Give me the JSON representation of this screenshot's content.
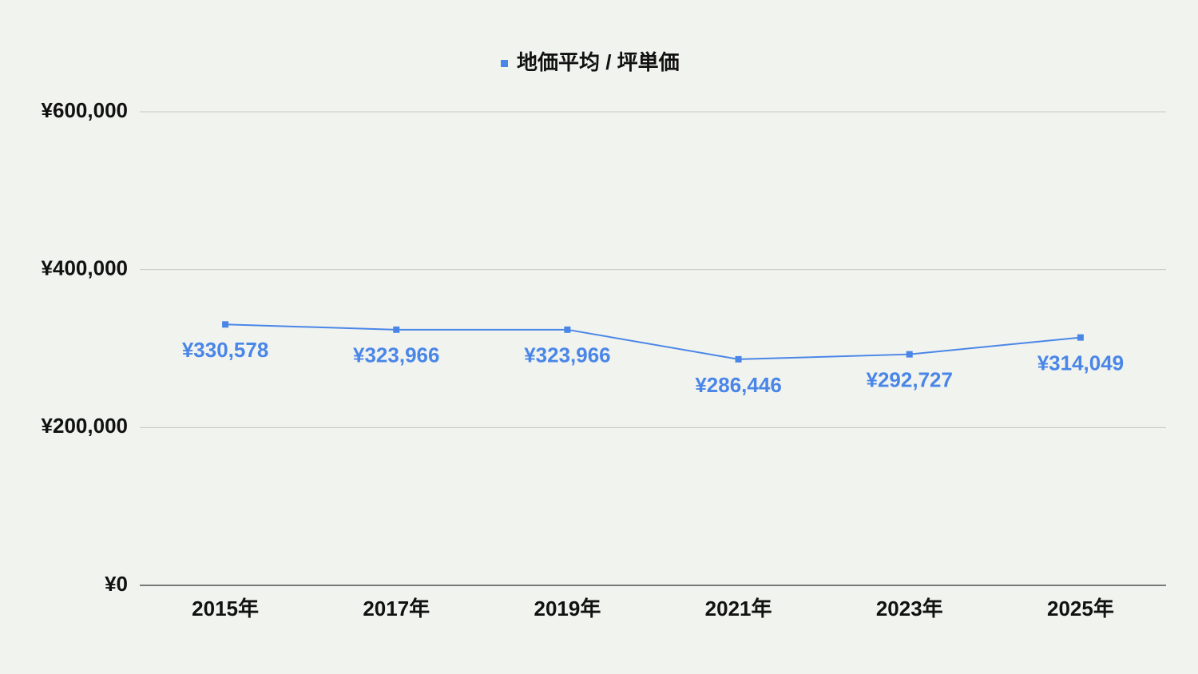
{
  "chart_data": {
    "type": "line",
    "series": [
      {
        "name": "地価平均 / 坪単価",
        "color": "#4a86e8",
        "values": [
          330578,
          323966,
          323966,
          286446,
          292727,
          314049
        ],
        "value_labels": [
          "¥330,578",
          "¥323,966",
          "¥323,966",
          "¥286,446",
          "¥292,727",
          "¥314,049"
        ]
      }
    ],
    "categories": [
      "2015年",
      "2017年",
      "2019年",
      "2021年",
      "2023年",
      "2025年"
    ],
    "ylim": [
      0,
      600000
    ],
    "yticks": [
      {
        "value": 0,
        "label": "¥0"
      },
      {
        "value": 200000,
        "label": "¥200,000"
      },
      {
        "value": 400000,
        "label": "¥400,000"
      },
      {
        "value": 600000,
        "label": "¥600,000"
      }
    ],
    "grid": true,
    "legend": "top"
  }
}
